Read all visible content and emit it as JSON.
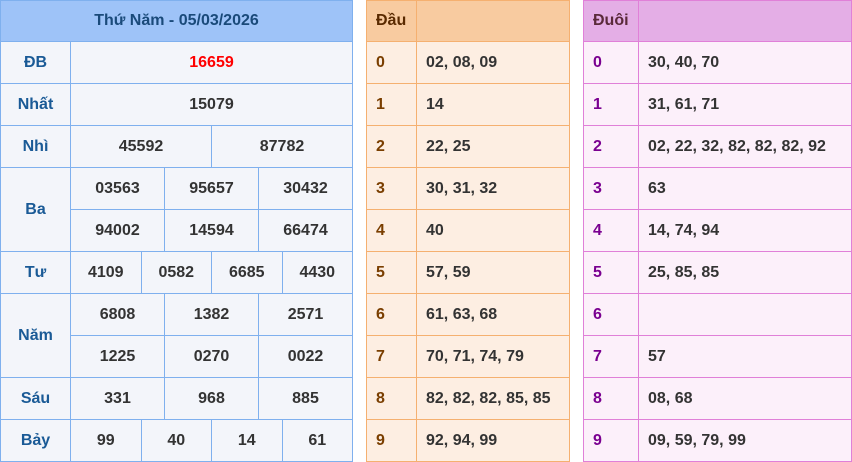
{
  "title": "Thứ Năm - 05/03/2026",
  "prizes": {
    "db": {
      "label": "ĐB",
      "values": [
        "16659"
      ]
    },
    "nhat": {
      "label": "Nhất",
      "values": [
        "15079"
      ]
    },
    "nhi": {
      "label": "Nhì",
      "values": [
        "45592",
        "87782"
      ]
    },
    "ba": {
      "label": "Ba",
      "values": [
        "03563",
        "95657",
        "30432",
        "94002",
        "14594",
        "66474"
      ]
    },
    "tu": {
      "label": "Tư",
      "values": [
        "4109",
        "0582",
        "6685",
        "4430"
      ]
    },
    "nam": {
      "label": "Năm",
      "values": [
        "6808",
        "1382",
        "2571",
        "1225",
        "0270",
        "0022"
      ]
    },
    "sau": {
      "label": "Sáu",
      "values": [
        "331",
        "968",
        "885"
      ]
    },
    "bay": {
      "label": "Bảy",
      "values": [
        "99",
        "40",
        "14",
        "61"
      ]
    }
  },
  "dau": {
    "header": "Đầu",
    "rows": [
      {
        "k": "0",
        "v": "02, 08, 09"
      },
      {
        "k": "1",
        "v": "14"
      },
      {
        "k": "2",
        "v": "22, 25"
      },
      {
        "k": "3",
        "v": "30, 31, 32"
      },
      {
        "k": "4",
        "v": "40"
      },
      {
        "k": "5",
        "v": "57, 59"
      },
      {
        "k": "6",
        "v": "61, 63, 68"
      },
      {
        "k": "7",
        "v": "70, 71, 74, 79"
      },
      {
        "k": "8",
        "v": "82, 82, 82, 85, 85"
      },
      {
        "k": "9",
        "v": "92, 94, 99"
      }
    ]
  },
  "duoi": {
    "header": "Đuôi",
    "rows": [
      {
        "k": "0",
        "v": "30, 40, 70"
      },
      {
        "k": "1",
        "v": "31, 61, 71"
      },
      {
        "k": "2",
        "v": "02, 22, 32, 82, 82, 82, 92"
      },
      {
        "k": "3",
        "v": "63"
      },
      {
        "k": "4",
        "v": "14, 74, 94"
      },
      {
        "k": "5",
        "v": "25, 85, 85"
      },
      {
        "k": "6",
        "v": ""
      },
      {
        "k": "7",
        "v": "57"
      },
      {
        "k": "8",
        "v": "08, 68"
      },
      {
        "k": "9",
        "v": "09, 59, 79, 99"
      }
    ]
  }
}
